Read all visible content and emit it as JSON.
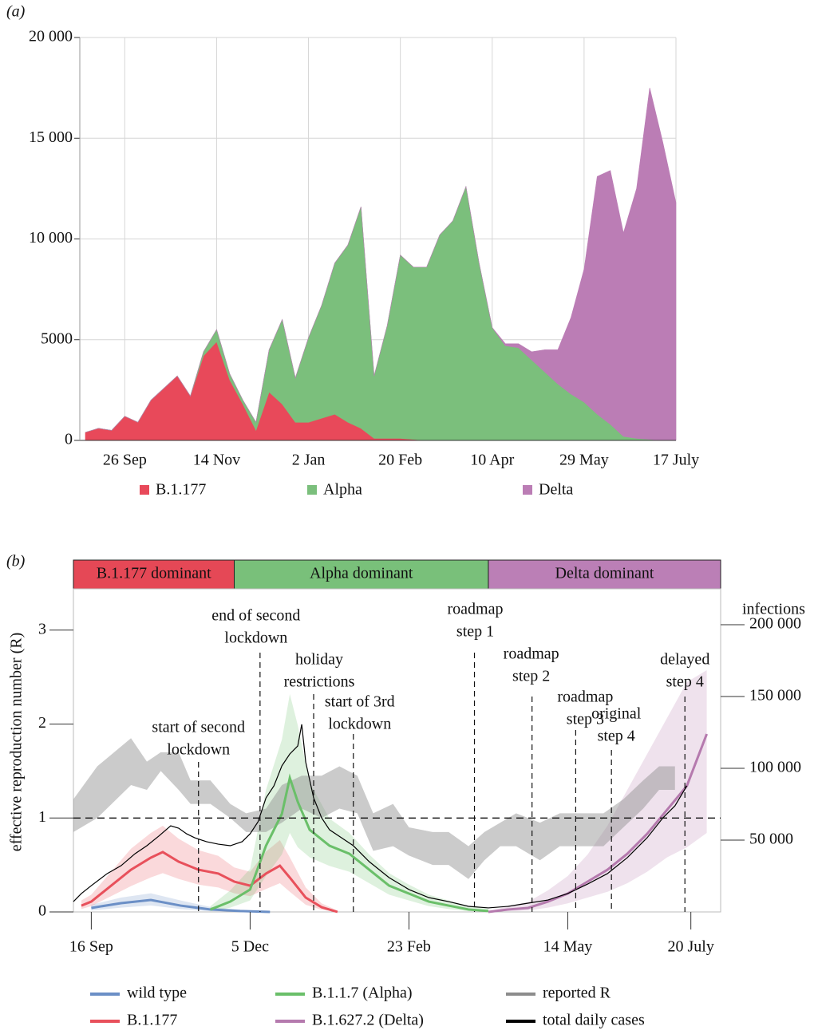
{
  "chart_data": [
    {
      "type": "area",
      "panel_label": "(a)",
      "categories": [
        null,
        null,
        null,
        "26 Sep",
        null,
        null,
        null,
        null,
        null,
        null,
        "14 Nov",
        null,
        null,
        null,
        null,
        null,
        null,
        "2 Jan",
        null,
        null,
        null,
        null,
        null,
        null,
        "20 Feb",
        null,
        null,
        null,
        null,
        null,
        null,
        "10 Apr",
        null,
        null,
        null,
        null,
        null,
        null,
        "29 May",
        null,
        null,
        null,
        null,
        null,
        null,
        "17 July"
      ],
      "series": [
        {
          "name": "B.1.177",
          "color": "#e8495a",
          "values": [
            400,
            600,
            500,
            1200,
            900,
            2000,
            2600,
            3200,
            2200,
            4200,
            4900,
            3000,
            1800,
            500,
            2400,
            1800,
            900,
            900,
            1100,
            1300,
            900,
            600,
            100,
            100,
            100,
            50,
            0,
            0,
            0,
            0,
            0,
            0,
            0,
            0,
            0,
            0,
            0,
            0,
            0,
            0,
            0,
            0,
            0,
            0,
            0,
            0
          ]
        },
        {
          "name": "Alpha",
          "color": "#7bbf7c",
          "values": [
            0,
            0,
            0,
            0,
            0,
            0,
            0,
            0,
            0,
            200,
            600,
            300,
            200,
            400,
            2100,
            4200,
            2200,
            4200,
            5600,
            7500,
            8800,
            11000,
            3100,
            5600,
            9100,
            8550,
            8600,
            10200,
            10900,
            12600,
            8800,
            5600,
            4700,
            4600,
            4000,
            3400,
            2800,
            2300,
            1900,
            1300,
            800,
            200,
            100,
            50,
            0,
            0
          ]
        },
        {
          "name": "Delta",
          "color": "#bb7db5",
          "values": [
            0,
            0,
            0,
            0,
            0,
            0,
            0,
            0,
            0,
            0,
            0,
            0,
            0,
            0,
            0,
            0,
            0,
            0,
            0,
            0,
            0,
            0,
            0,
            0,
            0,
            0,
            0,
            0,
            0,
            0,
            0,
            0,
            100,
            200,
            400,
            1100,
            1700,
            3800,
            6600,
            11800,
            12600,
            10100,
            12400,
            17450,
            14800,
            11800
          ]
        }
      ],
      "ylim": [
        0,
        20000
      ],
      "yticks": [
        0,
        5000,
        {
          "value": 10000,
          "label": "10 000"
        },
        {
          "value": 15000,
          "label": "15 000"
        },
        {
          "value": 20000,
          "label": "20 000"
        }
      ],
      "grid": true
    },
    {
      "type": "line",
      "panel_label": "(b)",
      "y_label": "effective reproduction number (R)",
      "y2_label": "infections",
      "periods": [
        {
          "label": "B.1.177 dominant",
          "start": -9,
          "end": 72,
          "color": "#e54856"
        },
        {
          "label": "Alpha dominant",
          "start": 72,
          "end": 200,
          "color": "#79c07a"
        },
        {
          "label": "Delta dominant",
          "start": 200,
          "end": 317,
          "color": "#bb7fb6"
        }
      ],
      "xlim": [
        -9,
        317
      ],
      "xticks": [
        {
          "value": 0,
          "label": "16 Sep"
        },
        {
          "value": 80,
          "label": "5 Dec"
        },
        {
          "value": 160,
          "label": "23 Feb"
        },
        {
          "value": 240,
          "label": "14 May"
        },
        {
          "value": 302,
          "label": "20 July"
        }
      ],
      "ylim": [
        0,
        3.44
      ],
      "yticks": [
        0,
        1,
        2,
        3
      ],
      "y2lim": [
        0,
        225000
      ],
      "y2ticks": [
        {
          "value": 50000,
          "label": "50 000"
        },
        {
          "value": 100000,
          "label": "100 000"
        },
        {
          "value": 150000,
          "label": "150 000"
        },
        {
          "value": 200000,
          "label": "200 000"
        }
      ],
      "reference_line": 1,
      "annotations": [
        {
          "label_lines": [
            "start of second",
            "lockdown"
          ],
          "x": 54
        },
        {
          "label_lines": [
            "end of second",
            "lockdown"
          ],
          "x": 85
        },
        {
          "label_lines": [
            "holiday",
            "restrictions"
          ],
          "x": 112
        },
        {
          "label_lines": [
            "start of 3rd",
            "lockdown"
          ],
          "x": 132
        },
        {
          "label_lines": [
            "roadmap",
            "step 1"
          ],
          "x": 193
        },
        {
          "label_lines": [
            "roadmap",
            "step 2"
          ],
          "x": 222
        },
        {
          "label_lines": [
            "roadmap",
            "step 3"
          ],
          "x": 244
        },
        {
          "label_lines": [
            "original",
            "step 4"
          ],
          "x": 262
        },
        {
          "label_lines": [
            "delayed",
            "step 4"
          ],
          "x": 299
        }
      ],
      "series": [
        {
          "name": "wild type",
          "color": "#6b8fc6",
          "axis": "y2",
          "x": [
            0,
            15,
            30,
            45,
            60,
            75,
            90
          ],
          "values": [
            2800,
            6100,
            8300,
            4400,
            1700,
            600,
            0
          ],
          "lower": [
            1000,
            3000,
            4500,
            2000,
            500,
            0,
            0
          ],
          "upper": [
            5000,
            10000,
            13000,
            8000,
            3500,
            1500,
            500
          ]
        },
        {
          "name": "B.1.177",
          "color": "#e8505b",
          "axis": "y2",
          "x": [
            -5,
            0,
            10,
            20,
            30,
            36,
            44,
            54,
            64,
            72,
            80,
            88,
            95,
            100,
            108,
            116,
            124
          ],
          "values": [
            4400,
            7200,
            18300,
            29400,
            37800,
            41700,
            35000,
            29400,
            26700,
            21100,
            18300,
            26700,
            32200,
            23900,
            10000,
            3300,
            0
          ],
          "lower": [
            2000,
            4000,
            11000,
            18000,
            24000,
            27000,
            23000,
            19000,
            17000,
            13000,
            11000,
            16000,
            20000,
            14000,
            5000,
            1500,
            0
          ],
          "upper": [
            8000,
            12000,
            28000,
            44000,
            55000,
            60000,
            51000,
            43000,
            39000,
            31000,
            28000,
            42000,
            50000,
            38000,
            17000,
            6000,
            1000
          ]
        },
        {
          "name": "B.1.1.7 (Alpha)",
          "color": "#6abf69",
          "axis": "y2",
          "x": [
            60,
            70,
            80,
            88,
            96,
            100,
            104,
            110,
            120,
            130,
            140,
            150,
            160,
            170,
            180,
            190,
            200
          ],
          "values": [
            1700,
            7200,
            15600,
            46100,
            68300,
            93300,
            76700,
            57200,
            46100,
            40500,
            29400,
            18300,
            12800,
            7200,
            4400,
            1700,
            600
          ],
          "lower": [
            500,
            3000,
            8000,
            25000,
            40000,
            55000,
            45000,
            38000,
            32000,
            28000,
            20000,
            12000,
            8000,
            4000,
            2000,
            500,
            0
          ],
          "upper": [
            4000,
            15000,
            30000,
            85000,
            120000,
            151700,
            130000,
            90000,
            65000,
            55000,
            40000,
            27000,
            19000,
            12000,
            8000,
            4000,
            2000
          ]
        },
        {
          "name": "B.1.627.2 (Delta)",
          "color": "#b57aae",
          "axis": "y2",
          "x": [
            200,
            210,
            220,
            230,
            240,
            250,
            260,
            270,
            280,
            290,
            300,
            310
          ],
          "values": [
            0,
            1700,
            2800,
            7200,
            12800,
            21100,
            29400,
            40500,
            54400,
            71100,
            87800,
            123900
          ],
          "lower": [
            0,
            500,
            1000,
            3000,
            6000,
            10000,
            14000,
            20000,
            28000,
            38000,
            45000,
            55000
          ],
          "upper": [
            500,
            4000,
            7000,
            15000,
            25000,
            40000,
            60000,
            85000,
            110000,
            135000,
            160000,
            168300
          ]
        },
        {
          "name": "reported R",
          "color": "#8c8c8c",
          "x": [
            -9,
            3,
            20,
            28,
            35,
            44,
            50,
            60,
            70,
            78,
            88,
            96,
            106,
            116,
            125,
            134,
            142,
            152,
            160,
            172,
            180,
            190,
            198,
            206,
            214,
            226,
            236,
            248,
            258,
            268,
            278,
            286,
            294
          ],
          "lower": [
            0.85,
            1.0,
            1.35,
            1.3,
            1.5,
            1.3,
            1.15,
            1.15,
            1.0,
            0.85,
            0.85,
            0.95,
            1.1,
            1.0,
            1.1,
            1.05,
            0.65,
            0.7,
            0.6,
            0.5,
            0.5,
            0.35,
            0.55,
            0.7,
            0.7,
            0.55,
            0.7,
            0.7,
            0.7,
            0.9,
            1.1,
            1.3,
            1.3
          ],
          "upper": [
            1.2,
            1.55,
            1.85,
            1.6,
            1.7,
            1.7,
            1.4,
            1.4,
            1.15,
            1.05,
            1.1,
            1.35,
            1.45,
            1.45,
            1.55,
            1.45,
            1.05,
            1.15,
            0.9,
            0.85,
            0.85,
            0.7,
            0.85,
            0.95,
            1.05,
            0.95,
            1.05,
            1.05,
            1.05,
            1.2,
            1.4,
            1.55,
            1.55
          ]
        },
        {
          "name": "total daily cases",
          "color": "#000000",
          "axis": "y2",
          "x": [
            -9,
            -5,
            0,
            8,
            15,
            22,
            28,
            34,
            40,
            44,
            48,
            52,
            58,
            64,
            70,
            76,
            80,
            84,
            88,
            92,
            96,
            100,
            104,
            106,
            108,
            112,
            116,
            120,
            126,
            132,
            140,
            150,
            160,
            170,
            180,
            190,
            200,
            210,
            220,
            230,
            240,
            250,
            260,
            270,
            280,
            288,
            294,
            300
          ],
          "values": [
            7200,
            12800,
            18300,
            26700,
            32200,
            40500,
            46100,
            52800,
            60000,
            58300,
            54400,
            51700,
            48900,
            47200,
            46100,
            48900,
            54400,
            62800,
            79400,
            87800,
            101700,
            110000,
            115600,
            130600,
            104400,
            79400,
            65600,
            57200,
            51700,
            46100,
            35000,
            23900,
            15600,
            10000,
            7200,
            3900,
            2800,
            3900,
            6100,
            8300,
            12800,
            19400,
            26700,
            37800,
            51700,
            65600,
            73900,
            87800
          ]
        }
      ]
    }
  ]
}
